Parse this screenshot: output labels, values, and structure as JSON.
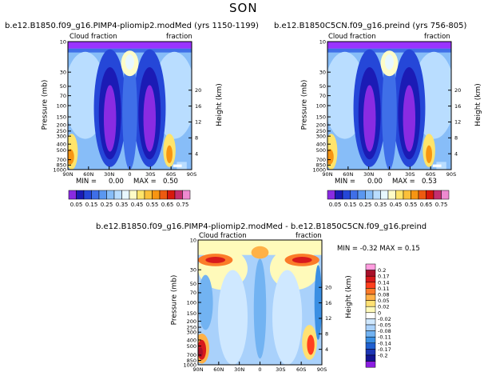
{
  "page": {
    "title": "SON"
  },
  "colors": {
    "topLevel": "#9a33ff",
    "scale": [
      "#8a2be2",
      "#1b1bb5",
      "#2547d8",
      "#3f6fe8",
      "#5a97f0",
      "#87bdf8",
      "#b9ddff",
      "#e8f8ff",
      "#fefcc8",
      "#ffe46b",
      "#fbc03a",
      "#f79512",
      "#ed5a10",
      "#d7190c",
      "#c42f6f",
      "#ee8ad0"
    ],
    "diffScale": [
      "#ff9ddf",
      "#a8102a",
      "#d7191c",
      "#ff3f1e",
      "#fb7b29",
      "#ffb147",
      "#ffe173",
      "#fffaba",
      "#ffffff",
      "#cfe8ff",
      "#a9d1fb",
      "#72b3f2",
      "#3a8fe3",
      "#2060d0",
      "#1c35b5",
      "#121593",
      "#8b1de0"
    ]
  },
  "chart_data": [
    {
      "type": "heatmap",
      "title": "b.e12.B1850.f09_g16.PIMP4-pliomip2.modMed (yrs 1150-1199)",
      "left_label": "Cloud fraction",
      "right_label": "fraction",
      "ylabel": "Pressure (mb)",
      "ylabel_right": "Height (km)",
      "x_ticks": [
        "90N",
        "60N",
        "30N",
        "0",
        "30S",
        "60S",
        "90S"
      ],
      "y_ticks": [
        "10",
        "30",
        "50",
        "70",
        "100",
        "150",
        "200",
        "250",
        "300",
        "400",
        "500",
        "700",
        "850",
        "1000"
      ],
      "y_ticks_right": [
        "20",
        "16",
        "12",
        "8",
        "4"
      ],
      "min_label": "MIN =",
      "min_value": "0.00",
      "max_label": "MAX =",
      "max_value": "0.50"
    },
    {
      "type": "heatmap",
      "title": "b.e12.B1850C5CN.f09_g16.preind (yrs 756-805)",
      "left_label": "Cloud fraction",
      "right_label": "fraction",
      "ylabel": "Pressure (mb)",
      "ylabel_right": "Height (km)",
      "x_ticks": [
        "90N",
        "60N",
        "30N",
        "0",
        "30S",
        "60S",
        "90S"
      ],
      "y_ticks": [
        "10",
        "30",
        "50",
        "70",
        "100",
        "150",
        "200",
        "250",
        "300",
        "400",
        "500",
        "700",
        "850",
        "1000"
      ],
      "y_ticks_right": [
        "20",
        "16",
        "12",
        "8",
        "4"
      ],
      "min_label": "MIN =",
      "min_value": "0.00",
      "max_label": "MAX =",
      "max_value": "0.53"
    },
    {
      "type": "heatmap",
      "title": "b.e12.B1850.f09_g16.PIMP4-pliomip2.modMed - b.e12.B1850C5CN.f09_g16.preind",
      "left_label": "Cloud fraction",
      "right_label": "fraction",
      "ylabel": "Pressure (mb)",
      "ylabel_right": "Height (km)",
      "x_ticks": [
        "90N",
        "60N",
        "30N",
        "0",
        "30S",
        "60S",
        "90S"
      ],
      "y_ticks": [
        "10",
        "30",
        "50",
        "70",
        "100",
        "150",
        "200",
        "250",
        "300",
        "400",
        "500",
        "700",
        "850",
        "1000"
      ],
      "y_ticks_right": [
        "20",
        "16",
        "12",
        "8",
        "4"
      ],
      "minmax_text": "MIN = -0.32 MAX = 0.15"
    }
  ],
  "colorbar": {
    "labels": [
      "0.05",
      "0.15",
      "0.25",
      "0.35",
      "0.45",
      "0.55",
      "0.65",
      "0.75"
    ]
  },
  "diff_colorbar": {
    "labels": [
      "0.2",
      "0.17",
      "0.14",
      "0.11",
      "0.08",
      "0.05",
      "0.02",
      "0",
      "-0.02",
      "-0.05",
      "-0.08",
      "-0.11",
      "-0.14",
      "-0.17",
      "-0.2"
    ]
  }
}
